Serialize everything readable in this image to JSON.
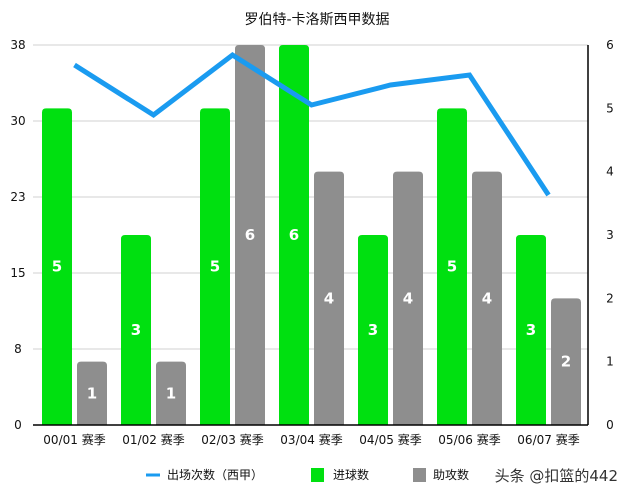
{
  "chart_data": {
    "type": "bar+line",
    "title": "罗伯特-卡洛斯西甲数据",
    "categories": [
      "00/01 赛季",
      "01/02 赛季",
      "02/03 赛季",
      "03/04 赛季",
      "04/05 赛季",
      "05/06 赛季",
      "06/07 赛季"
    ],
    "left_axis": {
      "ylim": [
        0,
        38
      ],
      "ticks": [
        "0",
        "8",
        "15",
        "23",
        "30",
        "38"
      ]
    },
    "right_axis": {
      "ylim": [
        0,
        6
      ],
      "ticks": [
        "0",
        "1",
        "2",
        "3",
        "4",
        "5",
        "6"
      ]
    },
    "grid": true,
    "legend_position": "bottom",
    "series": [
      {
        "name": "出场次数（西甲）",
        "type": "line",
        "axis": "left",
        "color": "#1a9bf0",
        "values": [
          36,
          31,
          37,
          32,
          34,
          35,
          23
        ]
      },
      {
        "name": "进球数",
        "type": "bar",
        "axis": "right",
        "color": "#00e010",
        "values": [
          5,
          3,
          5,
          6,
          3,
          5,
          3
        ]
      },
      {
        "name": "助攻数",
        "type": "bar",
        "axis": "right",
        "color": "#8e8e8e",
        "values": [
          1,
          1,
          6,
          4,
          4,
          4,
          2
        ]
      }
    ]
  },
  "watermark": "头条 @扣篮的442"
}
